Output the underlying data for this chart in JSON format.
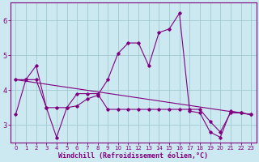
{
  "xlabel": "Windchill (Refroidissement éolien,°C)",
  "background_color": "#cce8f0",
  "line_color": "#800080",
  "grid_color": "#a0c8d0",
  "xlim": [
    -0.5,
    23.5
  ],
  "ylim": [
    2.5,
    6.5
  ],
  "yticks": [
    3,
    4,
    5,
    6
  ],
  "xticks": [
    0,
    1,
    2,
    3,
    4,
    5,
    6,
    7,
    8,
    9,
    10,
    11,
    12,
    13,
    14,
    15,
    16,
    17,
    18,
    19,
    20,
    21,
    22,
    23
  ],
  "series1_x": [
    0,
    1,
    2,
    3,
    4,
    5,
    6,
    7,
    8,
    9,
    10,
    11,
    12,
    13,
    14,
    15,
    16,
    17,
    18,
    19,
    20,
    21,
    22,
    23
  ],
  "series1_y": [
    3.3,
    4.3,
    4.7,
    3.5,
    2.65,
    3.5,
    3.55,
    3.75,
    3.85,
    4.3,
    5.05,
    5.35,
    5.35,
    4.7,
    5.65,
    5.75,
    6.2,
    3.4,
    3.35,
    2.8,
    2.65,
    3.4,
    3.35,
    3.3
  ],
  "series2_x": [
    0,
    1,
    2,
    3,
    4,
    5,
    6,
    7,
    8,
    9,
    10,
    11,
    12,
    13,
    14,
    15,
    16,
    17,
    18,
    19,
    20,
    21,
    22,
    23
  ],
  "series2_y": [
    4.3,
    4.3,
    4.3,
    3.5,
    3.5,
    3.5,
    3.9,
    3.9,
    3.9,
    3.45,
    3.45,
    3.45,
    3.45,
    3.45,
    3.45,
    3.45,
    3.45,
    3.45,
    3.45,
    3.1,
    2.8,
    3.35,
    3.35,
    3.3
  ],
  "series3_x": [
    0,
    23
  ],
  "series3_y": [
    4.3,
    3.3
  ],
  "xlabel_fontsize": 6,
  "xlabel_fontweight": "bold",
  "tick_fontsize": 5,
  "ytick_fontsize": 6,
  "marker": "D",
  "markersize": 1.8,
  "linewidth": 0.8
}
